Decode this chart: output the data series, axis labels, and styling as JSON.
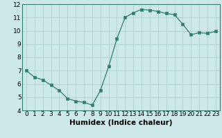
{
  "x": [
    0,
    1,
    2,
    3,
    4,
    5,
    6,
    7,
    8,
    9,
    10,
    11,
    12,
    13,
    14,
    15,
    16,
    17,
    18,
    19,
    20,
    21,
    22,
    23
  ],
  "y": [
    7.0,
    6.5,
    6.3,
    5.9,
    5.5,
    4.9,
    4.7,
    4.6,
    4.4,
    5.5,
    7.3,
    9.4,
    11.0,
    11.35,
    11.6,
    11.55,
    11.45,
    11.3,
    11.2,
    10.5,
    9.7,
    9.85,
    9.8,
    9.95
  ],
  "xlabel": "Humidex (Indice chaleur)",
  "line_color": "#2e7d6e",
  "marker_color": "#2e7d6e",
  "bg_color": "#cce8e8",
  "grid_color": "#aacccc",
  "xlim_min": -0.5,
  "xlim_max": 23.5,
  "ylim_min": 4,
  "ylim_max": 12,
  "yticks": [
    4,
    5,
    6,
    7,
    8,
    9,
    10,
    11,
    12
  ],
  "xticks": [
    0,
    1,
    2,
    3,
    4,
    5,
    6,
    7,
    8,
    9,
    10,
    11,
    12,
    13,
    14,
    15,
    16,
    17,
    18,
    19,
    20,
    21,
    22,
    23
  ],
  "xtick_labels": [
    "0",
    "1",
    "2",
    "3",
    "4",
    "5",
    "6",
    "7",
    "8",
    "9",
    "10",
    "11",
    "12",
    "13",
    "14",
    "15",
    "16",
    "17",
    "18",
    "19",
    "20",
    "21",
    "22",
    "23"
  ],
  "font_size_tick": 6.5,
  "font_size_xlabel": 7.5,
  "line_width": 0.9,
  "marker_size": 2.2
}
